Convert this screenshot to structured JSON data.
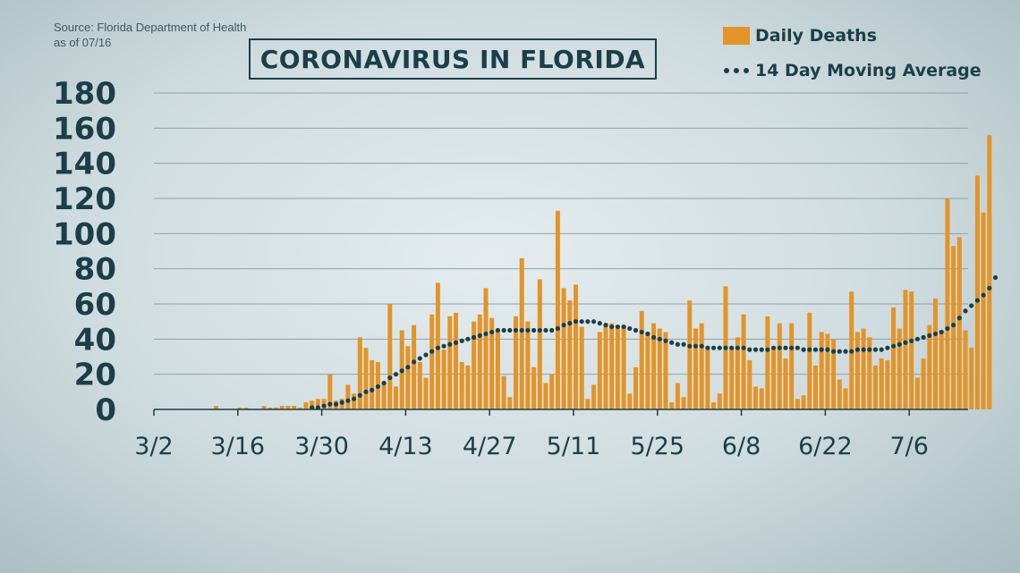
{
  "source": {
    "line1": "Source: Florida Department of Health",
    "line2": "as of 07/16"
  },
  "legend": {
    "bars_label": "Daily Deaths",
    "line_label": "14 Day Moving Average"
  },
  "colors": {
    "bar": "#e39427",
    "line": "#1b3f49",
    "grid": "#8ea2a8",
    "axis": "#1b3f49"
  },
  "chart_data": {
    "type": "bar",
    "title": "CORONAVIRUS IN FLORIDA",
    "xlabel": "",
    "ylabel": "",
    "ylim": [
      0,
      180
    ],
    "yticks": [
      0,
      20,
      40,
      60,
      80,
      100,
      120,
      140,
      160,
      180
    ],
    "xticks": [
      "3/2",
      "3/16",
      "3/30",
      "4/13",
      "4/27",
      "5/11",
      "5/25",
      "6/8",
      "6/22",
      "7/6"
    ],
    "grid": true,
    "legend_position": "top-right",
    "start_date": "3/2",
    "series": [
      {
        "name": "Daily Deaths",
        "type": "bar",
        "values": [
          0,
          0,
          0,
          0,
          0,
          0,
          0,
          0,
          0,
          0,
          2,
          0,
          0,
          0,
          1,
          1,
          0,
          0,
          2,
          1,
          1,
          2,
          2,
          2,
          1,
          4,
          5,
          6,
          6,
          20,
          5,
          6,
          14,
          9,
          41,
          35,
          28,
          27,
          15,
          60,
          13,
          45,
          36,
          48,
          27,
          18,
          54,
          72,
          34,
          53,
          55,
          27,
          25,
          50,
          54,
          69,
          52,
          45,
          19,
          7,
          53,
          86,
          50,
          24,
          74,
          15,
          20,
          113,
          69,
          62,
          71,
          47,
          6,
          14,
          44,
          48,
          49,
          46,
          47,
          9,
          24,
          56,
          44,
          49,
          46,
          44,
          4,
          15,
          7,
          62,
          46,
          49,
          36,
          4,
          9,
          70,
          36,
          41,
          54,
          28,
          13,
          12,
          53,
          35,
          49,
          29,
          49,
          6,
          8,
          55,
          25,
          44,
          43,
          40,
          17,
          12,
          67,
          44,
          46,
          41,
          25,
          29,
          28,
          58,
          46,
          68,
          67,
          18,
          29,
          48,
          63,
          45,
          120,
          93,
          98,
          45,
          35,
          133,
          112,
          156
        ]
      },
      {
        "name": "14 Day Moving Average",
        "type": "line",
        "values": [
          null,
          null,
          null,
          null,
          null,
          null,
          null,
          null,
          null,
          null,
          null,
          null,
          null,
          null,
          null,
          null,
          null,
          null,
          null,
          null,
          null,
          null,
          null,
          null,
          null,
          null,
          1,
          1,
          2,
          3,
          3,
          4,
          5,
          6,
          8,
          10,
          11,
          13,
          15,
          18,
          20,
          22,
          24,
          27,
          29,
          31,
          33,
          35,
          36,
          37,
          38,
          39,
          40,
          41,
          42,
          43,
          44,
          45,
          45,
          45,
          45,
          45,
          45,
          45,
          45,
          45,
          45,
          46,
          48,
          49,
          50,
          50,
          50,
          50,
          49,
          48,
          47,
          47,
          47,
          46,
          45,
          44,
          43,
          41,
          40,
          39,
          38,
          37,
          37,
          36,
          36,
          36,
          35,
          35,
          35,
          35,
          35,
          35,
          35,
          34,
          34,
          34,
          34,
          35,
          35,
          35,
          35,
          35,
          34,
          34,
          34,
          34,
          34,
          33,
          33,
          33,
          33,
          34,
          34,
          34,
          34,
          34,
          35,
          36,
          37,
          38,
          39,
          40,
          41,
          42,
          43,
          44,
          46,
          48,
          52,
          56,
          59,
          62,
          65,
          69,
          75
        ]
      }
    ]
  }
}
